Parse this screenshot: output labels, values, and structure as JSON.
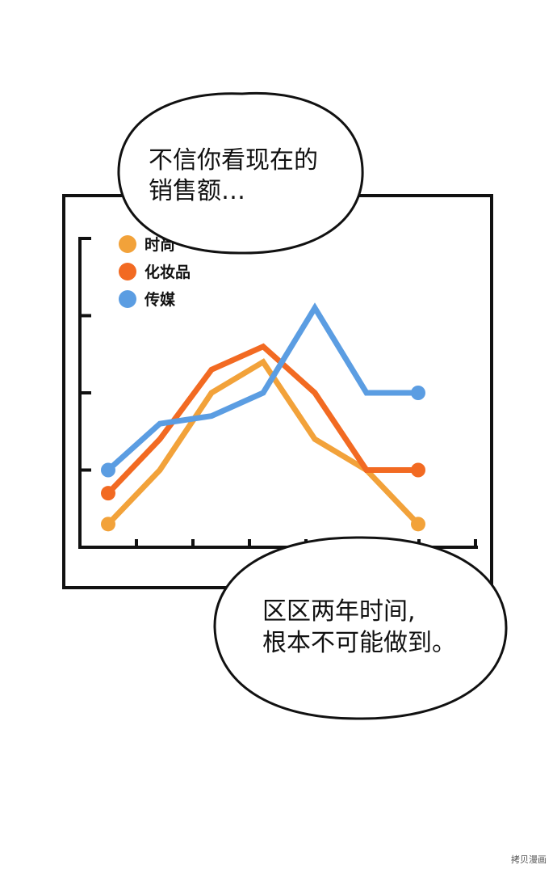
{
  "speech": {
    "top": {
      "line1": "不信你看现在的",
      "line2": "销售额…"
    },
    "bottom": {
      "line1": "区区两年时间,",
      "line2": "根本不可能做到。"
    }
  },
  "chart_data": {
    "type": "line",
    "x": [
      1,
      2,
      3,
      4,
      5,
      6,
      7
    ],
    "ylim": [
      0,
      5
    ],
    "grid": false,
    "legend": "top-left",
    "series": [
      {
        "name": "时尚",
        "color": "#f2a23a",
        "values": [
          0.3,
          1.0,
          2.0,
          2.4,
          1.4,
          1.0,
          0.3
        ],
        "endpoints": true
      },
      {
        "name": "化妆品",
        "color": "#f26a22",
        "values": [
          0.7,
          1.4,
          2.3,
          2.6,
          2.0,
          1.0,
          1.0
        ],
        "endpoints": true
      },
      {
        "name": "传媒",
        "color": "#5b9de2",
        "values": [
          1.0,
          1.6,
          1.7,
          2.0,
          3.1,
          2.0,
          2.0
        ],
        "endpoints": true
      }
    ]
  },
  "watermark": "拷贝漫画"
}
